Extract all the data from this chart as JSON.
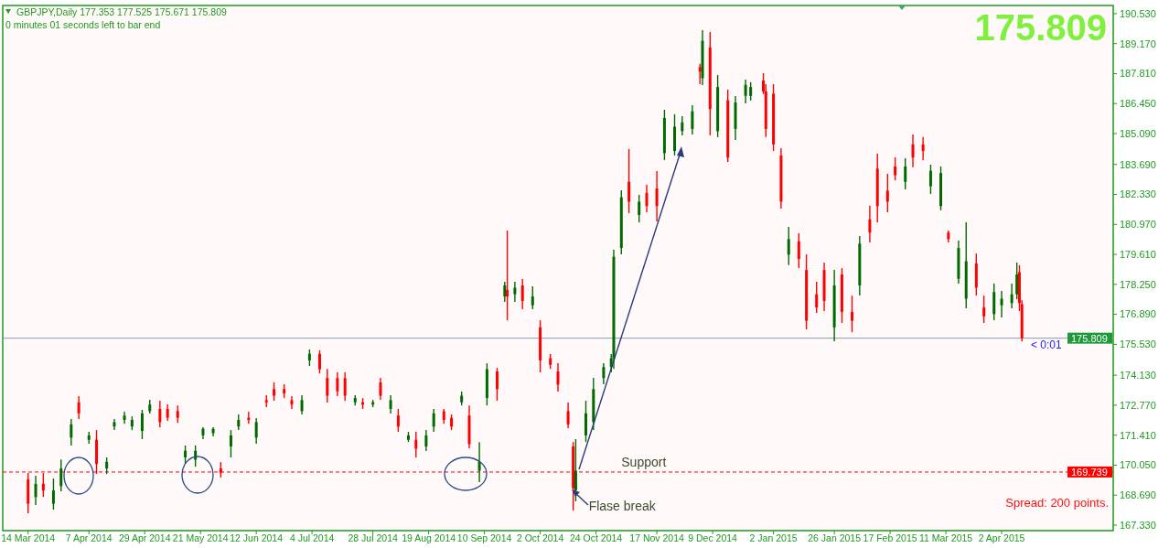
{
  "chart_data": {
    "type": "candlestick",
    "title": "GBPJPY,Daily  177.353 177.525 175.671 175.809",
    "subtitle": "0 minutes 01 seconds left to bar end",
    "x": [
      "2014-03-14",
      "2014-03-17",
      "2014-03-20",
      "2014-03-24",
      "2014-03-27",
      "2014-03-31",
      "2014-04-03",
      "2014-04-07",
      "2014-04-10",
      "2014-04-14",
      "2014-04-17",
      "2014-04-21",
      "2014-04-24",
      "2014-04-28",
      "2014-05-01",
      "2014-05-05",
      "2014-05-08",
      "2014-05-12",
      "2014-05-15",
      "2014-05-19",
      "2014-05-22",
      "2014-05-26",
      "2014-05-29",
      "2014-06-02",
      "2014-06-05",
      "2014-06-09",
      "2014-06-12",
      "2014-06-16",
      "2014-06-19",
      "2014-06-23",
      "2014-06-26",
      "2014-06-30",
      "2014-07-03",
      "2014-07-07",
      "2014-07-10",
      "2014-07-14",
      "2014-07-17",
      "2014-07-21",
      "2014-07-24",
      "2014-07-28",
      "2014-07-31",
      "2014-08-04",
      "2014-08-07",
      "2014-08-11",
      "2014-08-14",
      "2014-08-18",
      "2014-08-21",
      "2014-08-25",
      "2014-08-28",
      "2014-09-01",
      "2014-09-04",
      "2014-09-08",
      "2014-09-11",
      "2014-09-15",
      "2014-09-18",
      "2014-09-19",
      "2014-09-22",
      "2014-09-25",
      "2014-09-29",
      "2014-10-02",
      "2014-10-06",
      "2014-10-09",
      "2014-10-13",
      "2014-10-15",
      "2014-10-16",
      "2014-10-20",
      "2014-10-23",
      "2014-10-27",
      "2014-10-30",
      "2014-10-31",
      "2014-11-03",
      "2014-11-06",
      "2014-11-10",
      "2014-11-13",
      "2014-11-17",
      "2014-11-20",
      "2014-11-24",
      "2014-11-27",
      "2014-12-01",
      "2014-12-04",
      "2014-12-05",
      "2014-12-08",
      "2014-12-11",
      "2014-12-15",
      "2014-12-18",
      "2014-12-22",
      "2014-12-24",
      "2014-12-29",
      "2014-12-30",
      "2015-01-02",
      "2015-01-05",
      "2015-01-08",
      "2015-01-12",
      "2015-01-15",
      "2015-01-19",
      "2015-01-22",
      "2015-01-26",
      "2015-01-29",
      "2015-02-02",
      "2015-02-05",
      "2015-02-09",
      "2015-02-12",
      "2015-02-16",
      "2015-02-19",
      "2015-02-23",
      "2015-02-26",
      "2015-03-02",
      "2015-03-05",
      "2015-03-09",
      "2015-03-12",
      "2015-03-16",
      "2015-03-19",
      "2015-03-23",
      "2015-03-26",
      "2015-03-30",
      "2015-04-02",
      "2015-04-06",
      "2015-04-08",
      "2015-04-09",
      "2015-04-10"
    ],
    "ohlc": [
      [
        169.4,
        169.69,
        167.87,
        168.3
      ],
      [
        168.6,
        169.57,
        168.24,
        169.2
      ],
      [
        169.2,
        169.69,
        168.61,
        168.9
      ],
      [
        168.3,
        169.44,
        168.03,
        168.9
      ],
      [
        169.1,
        170.31,
        168.86,
        169.9
      ],
      [
        171.3,
        172.14,
        170.94,
        171.9
      ],
      [
        172.9,
        173.18,
        172.14,
        172.4
      ],
      [
        171.2,
        171.56,
        171.02,
        171.4
      ],
      [
        171.2,
        171.64,
        169.65,
        170.1
      ],
      [
        169.9,
        170.4,
        169.65,
        170.2
      ],
      [
        171.8,
        172.14,
        171.64,
        172.0
      ],
      [
        172.1,
        172.47,
        171.93,
        172.3
      ],
      [
        171.8,
        172.26,
        171.64,
        172.1
      ],
      [
        171.6,
        172.56,
        171.23,
        172.4
      ],
      [
        172.5,
        173.01,
        172.39,
        172.8
      ],
      [
        172.6,
        172.97,
        171.77,
        172.0
      ],
      [
        172.6,
        172.81,
        172.06,
        172.2
      ],
      [
        172.5,
        172.76,
        171.97,
        172.2
      ],
      [
        170.4,
        170.94,
        170.11,
        170.7
      ],
      [
        170.3,
        170.94,
        169.98,
        170.7
      ],
      [
        171.4,
        171.77,
        171.23,
        171.7
      ],
      [
        171.5,
        171.77,
        171.35,
        171.7
      ],
      [
        169.9,
        170.19,
        169.49,
        169.7
      ],
      [
        170.9,
        171.64,
        170.4,
        171.4
      ],
      [
        171.8,
        172.35,
        171.64,
        172.1
      ],
      [
        172.2,
        172.47,
        171.93,
        172.1
      ],
      [
        171.3,
        172.18,
        171.02,
        172.0
      ],
      [
        173.0,
        173.22,
        172.68,
        172.9
      ],
      [
        173.5,
        173.8,
        172.97,
        173.2
      ],
      [
        173.5,
        173.72,
        173.09,
        173.3
      ],
      [
        173.0,
        173.18,
        172.6,
        172.8
      ],
      [
        172.5,
        173.22,
        172.35,
        173.0
      ],
      [
        174.8,
        175.3,
        174.55,
        175.1
      ],
      [
        175.1,
        175.26,
        174.21,
        174.4
      ],
      [
        174.0,
        174.42,
        172.89,
        173.2
      ],
      [
        174.0,
        174.26,
        173.18,
        173.4
      ],
      [
        174.0,
        174.26,
        172.97,
        173.2
      ],
      [
        172.9,
        173.22,
        172.76,
        173.1
      ],
      [
        172.9,
        173.09,
        172.6,
        172.8
      ],
      [
        172.8,
        173.01,
        172.68,
        172.9
      ],
      [
        173.8,
        174.01,
        173.01,
        173.2
      ],
      [
        172.6,
        173.22,
        172.39,
        173.0
      ],
      [
        172.3,
        172.6,
        171.56,
        171.8
      ],
      [
        171.2,
        171.56,
        171.1,
        171.4
      ],
      [
        171.2,
        171.56,
        170.4,
        170.8
      ],
      [
        170.9,
        171.64,
        170.69,
        171.4
      ],
      [
        171.8,
        172.6,
        171.56,
        172.4
      ],
      [
        172.5,
        172.6,
        171.93,
        172.1
      ],
      [
        172.2,
        172.35,
        171.64,
        171.8
      ],
      [
        172.9,
        173.39,
        172.76,
        173.2
      ],
      [
        172.3,
        172.76,
        170.81,
        171.0
      ],
      [
        169.8,
        171.1,
        169.28,
        170.2
      ],
      [
        173.1,
        174.67,
        172.76,
        174.4
      ],
      [
        174.3,
        174.46,
        172.97,
        173.5
      ],
      [
        177.7,
        178.37,
        177.45,
        178.2
      ],
      [
        178.0,
        180.69,
        176.62,
        177.7
      ],
      [
        177.8,
        178.37,
        177.45,
        178.1
      ],
      [
        178.2,
        178.49,
        177.12,
        177.5
      ],
      [
        177.3,
        178.16,
        177.12,
        177.7
      ],
      [
        176.3,
        176.62,
        174.26,
        174.8
      ],
      [
        174.9,
        175.09,
        174.42,
        174.6
      ],
      [
        174.3,
        174.67,
        173.39,
        173.7
      ],
      [
        172.5,
        172.89,
        171.73,
        171.9
      ],
      [
        170.9,
        171.1,
        167.99,
        169.0
      ],
      [
        168.9,
        171.23,
        168.41,
        169.8
      ],
      [
        171.4,
        172.97,
        171.1,
        172.4
      ],
      [
        172.0,
        174.01,
        171.64,
        173.5
      ],
      [
        174.0,
        174.67,
        173.72,
        174.5
      ],
      [
        174.5,
        175.09,
        174.26,
        174.9
      ],
      [
        174.9,
        179.82,
        174.42,
        179.5
      ],
      [
        179.9,
        182.52,
        179.61,
        182.2
      ],
      [
        182.9,
        184.39,
        181.48,
        182.0
      ],
      [
        181.4,
        182.31,
        181.06,
        182.0
      ],
      [
        182.4,
        182.77,
        181.52,
        181.8
      ],
      [
        182.6,
        183.39,
        181.11,
        181.8
      ],
      [
        184.2,
        186.17,
        183.89,
        185.8
      ],
      [
        184.3,
        185.97,
        184.1,
        185.4
      ],
      [
        185.2,
        185.88,
        185.01,
        185.6
      ],
      [
        185.3,
        186.38,
        185.05,
        186.1
      ],
      [
        188.1,
        188.25,
        187.33,
        187.9
      ],
      [
        187.6,
        189.78,
        187.29,
        189.3
      ],
      [
        189.0,
        189.7,
        185.01,
        186.2
      ],
      [
        185.2,
        187.75,
        184.93,
        187.2
      ],
      [
        186.6,
        187.08,
        183.8,
        184.0
      ],
      [
        185.3,
        186.79,
        184.8,
        186.5
      ],
      [
        186.8,
        187.54,
        186.46,
        187.3
      ],
      [
        186.8,
        187.42,
        186.59,
        187.2
      ],
      [
        187.5,
        187.83,
        186.88,
        187.0
      ],
      [
        187.0,
        187.33,
        184.93,
        185.3
      ],
      [
        186.9,
        187.33,
        184.3,
        184.6
      ],
      [
        184.1,
        184.43,
        181.69,
        182.0
      ],
      [
        179.6,
        180.86,
        179.12,
        180.3
      ],
      [
        180.2,
        180.57,
        178.99,
        179.4
      ],
      [
        178.9,
        179.61,
        176.21,
        176.6
      ],
      [
        177.8,
        178.37,
        176.96,
        177.2
      ],
      [
        178.9,
        179.24,
        177.04,
        177.5
      ],
      [
        176.3,
        178.91,
        175.67,
        178.2
      ],
      [
        178.7,
        178.99,
        176.5,
        177.0
      ],
      [
        177.0,
        177.74,
        176.08,
        176.6
      ],
      [
        178.2,
        180.44,
        177.74,
        180.1
      ],
      [
        181.2,
        181.81,
        180.15,
        180.6
      ],
      [
        183.5,
        184.18,
        181.06,
        181.8
      ],
      [
        182.5,
        183.27,
        181.52,
        182.0
      ],
      [
        183.6,
        184.01,
        182.97,
        183.2
      ],
      [
        182.9,
        183.97,
        182.56,
        183.6
      ],
      [
        184.6,
        185.05,
        183.56,
        184.0
      ],
      [
        184.6,
        184.93,
        183.89,
        184.3
      ],
      [
        182.7,
        183.68,
        182.35,
        183.4
      ],
      [
        181.8,
        183.6,
        181.61,
        183.3
      ],
      [
        180.6,
        180.69,
        180.15,
        180.3
      ],
      [
        178.5,
        180.24,
        178.28,
        179.9
      ],
      [
        177.6,
        181.06,
        177.16,
        179.3
      ],
      [
        179.2,
        179.65,
        177.74,
        178.1
      ],
      [
        177.2,
        177.74,
        176.5,
        176.8
      ],
      [
        176.9,
        178.28,
        176.62,
        177.9
      ],
      [
        177.3,
        177.95,
        176.75,
        177.6
      ],
      [
        177.4,
        178.28,
        177.16,
        177.8
      ],
      [
        177.8,
        179.24,
        177.57,
        178.7
      ],
      [
        178.8,
        179.12,
        177.04,
        177.4
      ],
      [
        177.353,
        177.525,
        175.671,
        175.809
      ]
    ],
    "xlim": [
      "2014-03-04",
      "2015-05-16"
    ],
    "ylim": [
      167.08,
      190.9
    ],
    "xticks": [
      {
        "value": "2014-03-14",
        "label": "14 Mar 2014"
      },
      {
        "value": "2014-04-07",
        "label": "7 Apr 2014"
      },
      {
        "value": "2014-04-29",
        "label": "29 Apr 2014"
      },
      {
        "value": "2014-05-21",
        "label": "21 May 2014"
      },
      {
        "value": "2014-06-12",
        "label": "12 Jun 2014"
      },
      {
        "value": "2014-07-04",
        "label": "4 Jul 2014"
      },
      {
        "value": "2014-07-28",
        "label": "28 Jul 2014"
      },
      {
        "value": "2014-08-19",
        "label": "19 Aug 2014"
      },
      {
        "value": "2014-09-10",
        "label": "10 Sep 2014"
      },
      {
        "value": "2014-10-02",
        "label": "2 Oct 2014"
      },
      {
        "value": "2014-10-24",
        "label": "24 Oct 2014"
      },
      {
        "value": "2014-11-17",
        "label": "17 Nov 2014"
      },
      {
        "value": "2014-12-09",
        "label": "9 Dec 2014"
      },
      {
        "value": "2015-01-02",
        "label": "2 Jan 2015"
      },
      {
        "value": "2015-01-26",
        "label": "26 Jan 2015"
      },
      {
        "value": "2015-02-17",
        "label": "17 Feb 2015"
      },
      {
        "value": "2015-03-11",
        "label": "11 Mar 2015"
      },
      {
        "value": "2015-04-02",
        "label": "2 Apr 2015"
      }
    ],
    "yticks": [
      {
        "value": 167.33,
        "label": "167.330"
      },
      {
        "value": 168.69,
        "label": "168.690"
      },
      {
        "value": 170.05,
        "label": "170.050"
      },
      {
        "value": 171.41,
        "label": "171.410"
      },
      {
        "value": 172.77,
        "label": "172.770"
      },
      {
        "value": 174.13,
        "label": "174.130"
      },
      {
        "value": 175.53,
        "label": "175.530"
      },
      {
        "value": 176.89,
        "label": "176.890"
      },
      {
        "value": 178.25,
        "label": "178.250"
      },
      {
        "value": 179.61,
        "label": "179.610"
      },
      {
        "value": 180.97,
        "label": "180.970"
      },
      {
        "value": 182.33,
        "label": "182.330"
      },
      {
        "value": 183.69,
        "label": "183.690"
      },
      {
        "value": 185.09,
        "label": "185.090"
      },
      {
        "value": 186.45,
        "label": "186.450"
      },
      {
        "value": 187.81,
        "label": "187.810"
      },
      {
        "value": 189.17,
        "label": "189.170"
      },
      {
        "value": 190.53,
        "label": "190.530"
      }
    ],
    "ref_lines": [
      {
        "axis": "y",
        "value": 175.809,
        "label": "175.809",
        "color": "#8a9bb0",
        "line_style": "solid"
      },
      {
        "axis": "y",
        "value": 169.739,
        "label": "169.739",
        "color": "#ff0000",
        "line_style": "dashed"
      }
    ],
    "annotations": [
      "175.809",
      "< 0:01",
      "Spread: 200 points.",
      {
        "text": "Support",
        "x": "2014-11-03",
        "y": 169.739
      },
      {
        "text": "Flase break",
        "x": "2014-10-15",
        "y": 168.9
      }
    ]
  }
}
